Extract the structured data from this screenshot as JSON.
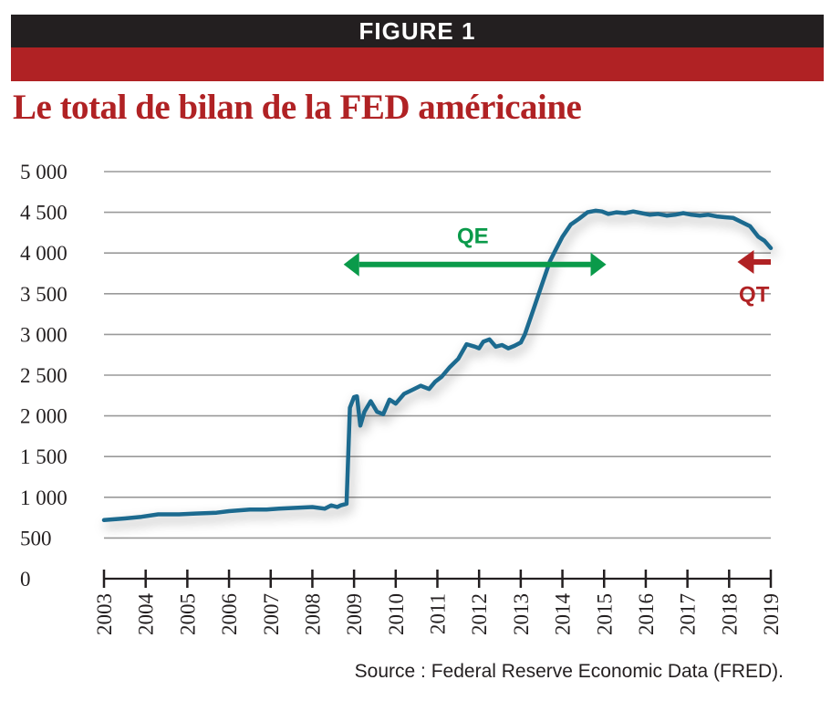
{
  "header": {
    "figure_label": "FIGURE 1"
  },
  "colors": {
    "line": "#1d6b8f",
    "qe": "#0a9a4a",
    "qt": "#b02224",
    "grid": "#9a9a9a",
    "brand_red": "#b02224"
  },
  "chart_data": {
    "type": "line",
    "title": "Le total de bilan de la FED américaine",
    "xlabel": "",
    "ylabel": "",
    "xlim": [
      2003,
      2019
    ],
    "ylim": [
      0,
      5000
    ],
    "y_ticks": [
      0,
      500,
      1000,
      1500,
      2000,
      2500,
      3000,
      3500,
      4000,
      4500,
      5000
    ],
    "y_tick_labels": [
      "0",
      "500",
      "1 000",
      "1 500",
      "2 000",
      "2 500",
      "3 000",
      "3 500",
      "4 000",
      "4 500",
      "5 000"
    ],
    "x_ticks": [
      2003,
      2004,
      2005,
      2006,
      2007,
      2008,
      2009,
      2010,
      2011,
      2012,
      2013,
      2014,
      2015,
      2016,
      2017,
      2018,
      2019
    ],
    "x_tick_labels": [
      "2003",
      "2004",
      "2005",
      "2006",
      "2007",
      "2008",
      "2009",
      "2010",
      "2011",
      "2012",
      "2013",
      "2014",
      "2015",
      "2016",
      "2017",
      "2018",
      "2019"
    ],
    "grid": true,
    "series": [
      {
        "x": [
          2003.0,
          2003.5,
          2003.9,
          2004.3,
          2004.8,
          2005.2,
          2005.7,
          2006.0,
          2006.5,
          2006.9,
          2007.2,
          2007.6,
          2008.0,
          2008.3,
          2008.45,
          2008.6,
          2008.68,
          2008.75,
          2008.82,
          2008.9,
          2009.0,
          2009.07,
          2009.15,
          2009.25,
          2009.4,
          2009.55,
          2009.7,
          2009.85,
          2010.0,
          2010.2,
          2010.4,
          2010.6,
          2010.8,
          2010.95,
          2011.1,
          2011.3,
          2011.5,
          2011.7,
          2011.9,
          2012.0,
          2012.1,
          2012.25,
          2012.4,
          2012.55,
          2012.7,
          2012.85,
          2013.0,
          2013.1,
          2013.3,
          2013.5,
          2013.7,
          2013.85,
          2014.0,
          2014.2,
          2014.4,
          2014.6,
          2014.8,
          2014.95,
          2015.1,
          2015.3,
          2015.5,
          2015.7,
          2015.9,
          2016.1,
          2016.3,
          2016.5,
          2016.7,
          2016.9,
          2017.1,
          2017.3,
          2017.5,
          2017.7,
          2017.9,
          2018.1,
          2018.3,
          2018.5,
          2018.7,
          2018.85,
          2019.0
        ],
        "values": [
          720,
          740,
          760,
          790,
          790,
          800,
          810,
          830,
          850,
          850,
          860,
          870,
          880,
          860,
          900,
          880,
          900,
          910,
          920,
          2100,
          2230,
          2240,
          1880,
          2050,
          2180,
          2050,
          2020,
          2200,
          2150,
          2270,
          2320,
          2370,
          2330,
          2420,
          2480,
          2600,
          2700,
          2880,
          2850,
          2830,
          2910,
          2940,
          2850,
          2870,
          2830,
          2860,
          2900,
          3000,
          3300,
          3600,
          3900,
          4050,
          4200,
          4350,
          4420,
          4500,
          4520,
          4510,
          4480,
          4500,
          4490,
          4510,
          4490,
          4470,
          4480,
          4460,
          4470,
          4490,
          4470,
          4460,
          4470,
          4450,
          4440,
          4430,
          4380,
          4330,
          4200,
          4150,
          4060
        ]
      }
    ],
    "annotations": [
      {
        "label": "QE",
        "from": 2008.75,
        "to": 2015.05,
        "y": 3860,
        "label_x": 2011.85,
        "label_y": 4120
      },
      {
        "label": "QT",
        "arrow_from": 2019.0,
        "arrow_to": 2018.2,
        "y": 3890,
        "label_x": 2018.6,
        "label_y": 3400
      }
    ]
  },
  "source": {
    "text": "Source : Federal Reserve Economic Data (FRED)."
  }
}
